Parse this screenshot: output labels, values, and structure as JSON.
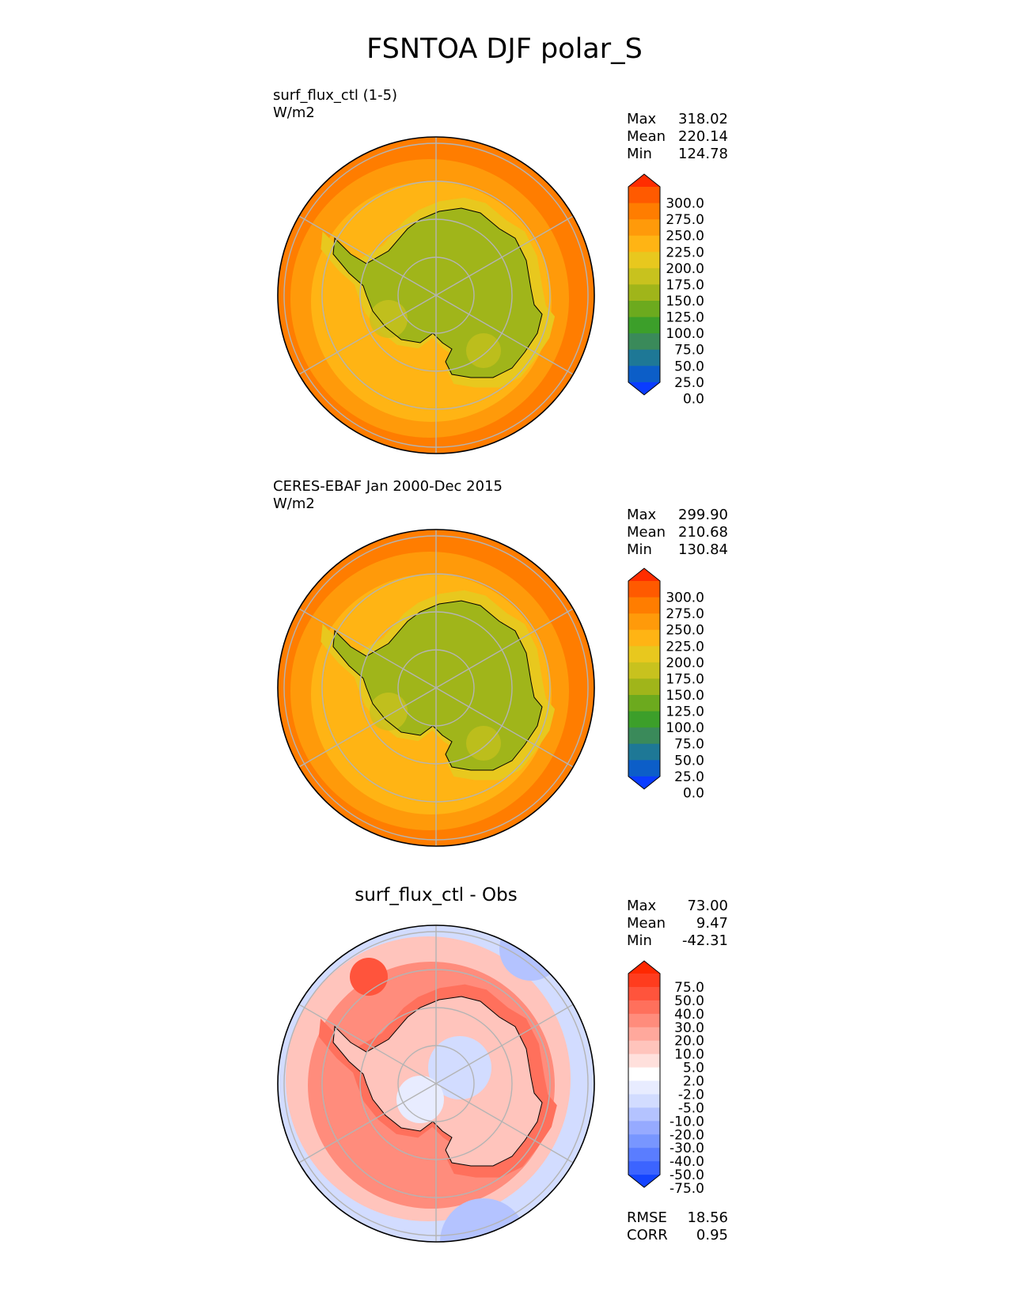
{
  "figure_title": "FSNTOA DJF polar_S",
  "panels": [
    {
      "title_line1": "surf_flux_ctl (1-5)",
      "title_line2": "W/m2",
      "stats": {
        "max_label": "Max",
        "max": "318.02",
        "mean_label": "Mean",
        "mean": "220.14",
        "min_label": "Min",
        "min": "124.78"
      }
    },
    {
      "title_line1": "CERES-EBAF Jan 2000-Dec 2015",
      "title_line2": "W/m2",
      "stats": {
        "max_label": "Max",
        "max": "299.90",
        "mean_label": "Mean",
        "mean": "210.68",
        "min_label": "Min",
        "min": "130.84"
      }
    },
    {
      "title": "surf_flux_ctl - Obs",
      "stats": {
        "max_label": "Max",
        "max": "73.00",
        "mean_label": "Mean",
        "mean": "9.47",
        "min_label": "Min",
        "min": "-42.31"
      },
      "metrics": {
        "rmse_label": "RMSE",
        "rmse": "18.56",
        "corr_label": "CORR",
        "corr": "0.95"
      }
    }
  ],
  "chart_data": [
    {
      "type": "heatmap",
      "projection": "south-polar-stereographic",
      "title": "surf_flux_ctl (1-5)",
      "units": "W/m2",
      "summary": {
        "max": 318.02,
        "mean": 220.14,
        "min": 124.78
      },
      "colorbar_levels": [
        0.0,
        25.0,
        50.0,
        75.0,
        100.0,
        125.0,
        150.0,
        175.0,
        200.0,
        225.0,
        250.0,
        275.0,
        300.0
      ],
      "colorbar_ticks": [
        "300.0",
        "275.0",
        "250.0",
        "225.0",
        "200.0",
        "175.0",
        "150.0",
        "125.0",
        "100.0",
        "75.0",
        "50.0",
        "25.0",
        "0.0"
      ]
    },
    {
      "type": "heatmap",
      "projection": "south-polar-stereographic",
      "title": "CERES-EBAF Jan 2000-Dec 2015",
      "units": "W/m2",
      "summary": {
        "max": 299.9,
        "mean": 210.68,
        "min": 130.84
      },
      "colorbar_levels": [
        0.0,
        25.0,
        50.0,
        75.0,
        100.0,
        125.0,
        150.0,
        175.0,
        200.0,
        225.0,
        250.0,
        275.0,
        300.0
      ],
      "colorbar_ticks": [
        "300.0",
        "275.0",
        "250.0",
        "225.0",
        "200.0",
        "175.0",
        "150.0",
        "125.0",
        "100.0",
        "75.0",
        "50.0",
        "25.0",
        "0.0"
      ]
    },
    {
      "type": "heatmap",
      "projection": "south-polar-stereographic",
      "title": "surf_flux_ctl - Obs",
      "summary": {
        "max": 73.0,
        "mean": 9.47,
        "min": -42.31,
        "rmse": 18.56,
        "corr": 0.95
      },
      "colorbar_levels": [
        -75.0,
        -50.0,
        -40.0,
        -30.0,
        -20.0,
        -10.0,
        -5.0,
        -2.0,
        2.0,
        5.0,
        10.0,
        20.0,
        30.0,
        40.0,
        50.0,
        75.0
      ],
      "colorbar_ticks": [
        "75.0",
        "50.0",
        "40.0",
        "30.0",
        "20.0",
        "10.0",
        "5.0",
        "2.0",
        "-2.0",
        "-5.0",
        "-10.0",
        "-20.0",
        "-30.0",
        "-40.0",
        "-50.0",
        "-75.0"
      ]
    }
  ],
  "colors": {
    "abs_scale": [
      "#0a3cff",
      "#0c5ec8",
      "#1e7896",
      "#3a8a5a",
      "#3c9f2a",
      "#6caa1e",
      "#a0b51a",
      "#c8c21e",
      "#e8c81e",
      "#ffb414",
      "#ff9a0a",
      "#ff7d00",
      "#ff5a00",
      "#ff2d00"
    ],
    "diff_scale": [
      "#1444ff",
      "#3c64ff",
      "#5a7dff",
      "#7896ff",
      "#96aaff",
      "#b4c3ff",
      "#d2dcff",
      "#e8ecff",
      "#ffffff",
      "#ffe0dc",
      "#ffc4bc",
      "#ffa89c",
      "#ff8c7c",
      "#ff705c",
      "#ff543c",
      "#ff3c1e",
      "#ff2800"
    ],
    "land_abs": "#a0b51a",
    "grid": "#b4b4b4",
    "coast": "#000000"
  }
}
